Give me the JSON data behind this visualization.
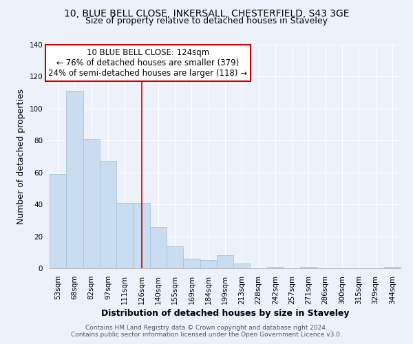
{
  "title1": "10, BLUE BELL CLOSE, INKERSALL, CHESTERFIELD, S43 3GE",
  "title2": "Size of property relative to detached houses in Staveley",
  "xlabel": "Distribution of detached houses by size in Staveley",
  "ylabel": "Number of detached properties",
  "bar_labels": [
    "53sqm",
    "68sqm",
    "82sqm",
    "97sqm",
    "111sqm",
    "126sqm",
    "140sqm",
    "155sqm",
    "169sqm",
    "184sqm",
    "199sqm",
    "213sqm",
    "228sqm",
    "242sqm",
    "257sqm",
    "271sqm",
    "286sqm",
    "300sqm",
    "315sqm",
    "329sqm",
    "344sqm"
  ],
  "bar_values": [
    59,
    111,
    81,
    67,
    41,
    41,
    26,
    14,
    6,
    5,
    8,
    3,
    0,
    1,
    0,
    1,
    0,
    0,
    0,
    0,
    1
  ],
  "bar_color": "#c9dcf0",
  "bar_edge_color": "#a8c4e0",
  "annotation_line1": "10 BLUE BELL CLOSE: 124sqm",
  "annotation_line2": "← 76% of detached houses are smaller (379)",
  "annotation_line3": "24% of semi-detached houses are larger (118) →",
  "annotation_box_color": "#ffffff",
  "annotation_box_edge_color": "#cc0000",
  "vline_x": 5,
  "vline_color": "#cc0000",
  "ylim": [
    0,
    140
  ],
  "yticks": [
    0,
    20,
    40,
    60,
    80,
    100,
    120,
    140
  ],
  "footer1": "Contains HM Land Registry data © Crown copyright and database right 2024.",
  "footer2": "Contains public sector information licensed under the Open Government Licence v3.0.",
  "bg_color": "#edf2fa",
  "plot_bg_color": "#edf2fa",
  "grid_color": "#ffffff",
  "title_fontsize": 10,
  "subtitle_fontsize": 9,
  "axis_label_fontsize": 9,
  "tick_fontsize": 7.5,
  "annotation_fontsize": 8.5,
  "footer_fontsize": 6.5
}
